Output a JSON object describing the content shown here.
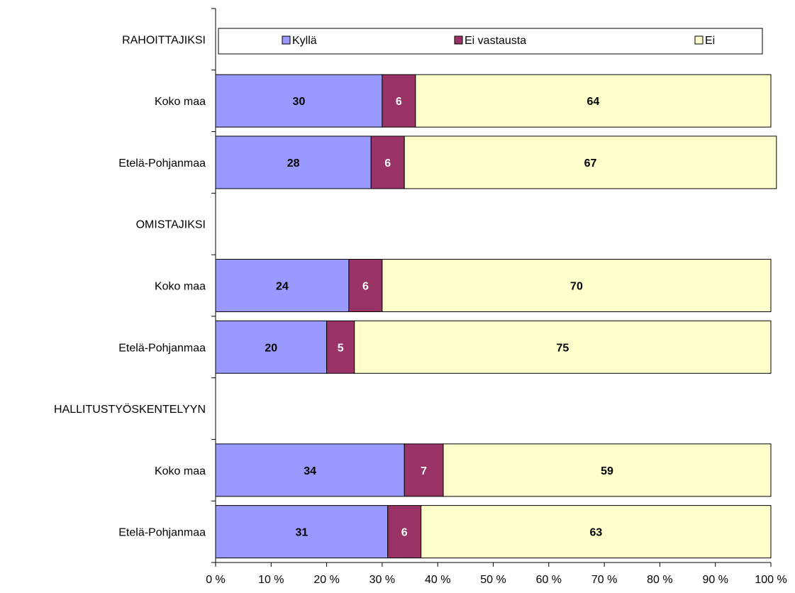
{
  "chart_data": {
    "type": "bar",
    "orientation": "horizontal",
    "stacked": true,
    "categories": [
      "RAHOITTAJIKSI",
      "Koko maa",
      "Etelä-Pohjanmaa",
      "OMISTAJIKSI",
      "Koko maa",
      "Etelä-Pohjanmaa",
      "HALLITUSTYÖSKENTELYYN",
      "Koko maa",
      "Etelä-Pohjanmaa"
    ],
    "series": [
      {
        "name": "Kyllä",
        "color": "#9999ff",
        "label_color": "#000000",
        "values": [
          null,
          30,
          28,
          null,
          24,
          20,
          null,
          34,
          31
        ]
      },
      {
        "name": "Ei vastausta",
        "color": "#993366",
        "label_color": "#ffffff",
        "values": [
          null,
          6,
          6,
          null,
          6,
          5,
          null,
          7,
          6
        ]
      },
      {
        "name": "Ei",
        "color": "#ffffcc",
        "label_color": "#000000",
        "values": [
          null,
          64,
          67,
          null,
          70,
          75,
          null,
          59,
          63
        ]
      }
    ],
    "xlim": [
      0,
      100
    ],
    "x_ticks": [
      "0 %",
      "10 %",
      "20 %",
      "30 %",
      "40 %",
      "50 %",
      "60 %",
      "70 %",
      "80 %",
      "90 %",
      "100 %"
    ],
    "legend_position": "top",
    "grid": false
  }
}
